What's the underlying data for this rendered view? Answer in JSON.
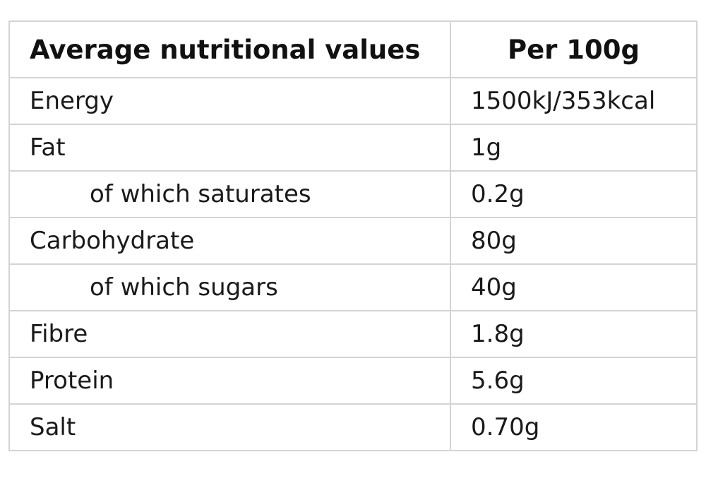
{
  "table": {
    "headers": {
      "name": "Average nutritional values",
      "value": "Per 100g"
    },
    "rows": [
      {
        "name": "Energy",
        "value": "1500kJ/353kcal",
        "indent": false
      },
      {
        "name": "Fat",
        "value": "1g",
        "indent": false
      },
      {
        "name": "of which saturates",
        "value": "0.2g",
        "indent": true
      },
      {
        "name": "Carbohydrate",
        "value": "80g",
        "indent": false
      },
      {
        "name": "of which sugars",
        "value": "40g",
        "indent": true
      },
      {
        "name": "Fibre",
        "value": "1.8g",
        "indent": false
      },
      {
        "name": "Protein",
        "value": "5.6g",
        "indent": false
      },
      {
        "name": "Salt",
        "value": "0.70g",
        "indent": false
      }
    ]
  }
}
